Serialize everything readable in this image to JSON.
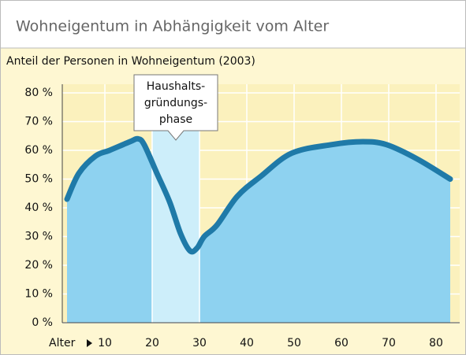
{
  "chart_data": {
    "type": "area-line",
    "title": "Wohneigentum in Abhängigkeit vom Alter",
    "subtitle": "Anteil der Personen in Wohneigentum (2003)",
    "xlabel": "Alter",
    "x": [
      2,
      4.5,
      8,
      11,
      15.3,
      17,
      18.3,
      21,
      23.7,
      26,
      28,
      29.5,
      31,
      33.7,
      38,
      43,
      49.5,
      58,
      64.5,
      69.5,
      76,
      83
    ],
    "values": [
      43,
      52,
      58,
      60,
      63,
      64,
      62,
      52,
      42,
      31,
      25,
      26,
      30,
      34,
      44,
      51,
      59,
      62,
      63,
      62,
      57,
      50
    ],
    "line_color": "#1f7aa8",
    "fill_color": "#8ed2f0",
    "highlight": [
      20,
      30
    ],
    "highlight_color": "#cdeefa",
    "annotation": {
      "lines": [
        "Haushalts-",
        "gründungs-",
        "phase"
      ],
      "x": 25
    },
    "xlim": [
      1,
      85
    ],
    "xticks": [
      10,
      20,
      30,
      40,
      50,
      60,
      70,
      80
    ],
    "ylim": [
      0,
      83
    ],
    "yticks": [
      {
        "value": 0,
        "label": "0 %"
      },
      {
        "value": 10,
        "label": "10 %"
      },
      {
        "value": 20,
        "label": "20 %"
      },
      {
        "value": 30,
        "label": "30 %"
      },
      {
        "value": 40,
        "label": "40 %"
      },
      {
        "value": 50,
        "label": "50 %"
      },
      {
        "value": 60,
        "label": "60 %"
      },
      {
        "value": 70,
        "label": "70 %"
      },
      {
        "value": 80,
        "label": "80 %"
      }
    ],
    "grid": true
  }
}
